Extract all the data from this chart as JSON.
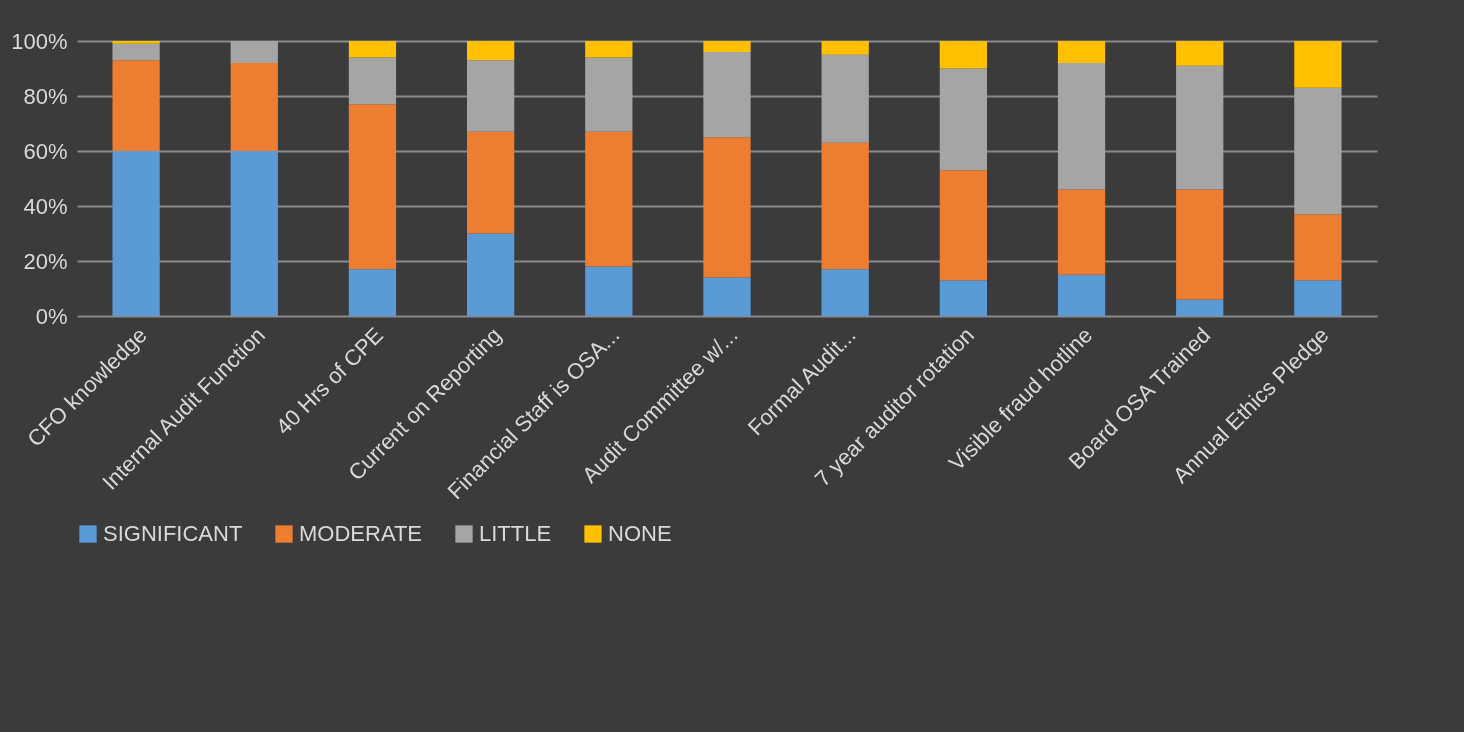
{
  "chart_data": {
    "type": "bar",
    "stacked": true,
    "categories": [
      "CFO knowledge",
      "Internal Audit Function",
      "40 Hrs of CPE",
      "Current on Reporting",
      "Financial Staff is OSA...",
      "Audit Committee w/...",
      "Formal Audit...",
      "7 year auditor rotation",
      "Visible fraud hotline",
      "Board OSA Trained",
      "Annual Ethics Pledge"
    ],
    "series": [
      {
        "name": "SIGNIFICANT",
        "color": "#5b9bd5",
        "values": [
          60,
          60,
          17,
          30,
          18,
          14,
          17,
          13,
          15,
          6,
          13
        ]
      },
      {
        "name": "MODERATE",
        "color": "#ed7d31",
        "values": [
          33,
          32,
          60,
          37,
          49,
          51,
          46,
          40,
          31,
          40,
          24
        ]
      },
      {
        "name": "LITTLE",
        "color": "#a5a5a5",
        "values": [
          6,
          8,
          17,
          26,
          27,
          31,
          32,
          37,
          46,
          45,
          46
        ]
      },
      {
        "name": "NONE",
        "color": "#ffc000",
        "values": [
          1,
          0,
          6,
          7,
          6,
          4,
          5,
          10,
          8,
          9,
          17
        ]
      }
    ],
    "ylim": [
      0,
      100
    ],
    "yticks": [
      {
        "value": 0,
        "label": "0%"
      },
      {
        "value": 20,
        "label": "20%"
      },
      {
        "value": 40,
        "label": "40%"
      },
      {
        "value": 60,
        "label": "60%"
      },
      {
        "value": 80,
        "label": "80%"
      },
      {
        "value": 100,
        "label": "100%"
      }
    ],
    "grid": "y",
    "legend": "bottom"
  }
}
